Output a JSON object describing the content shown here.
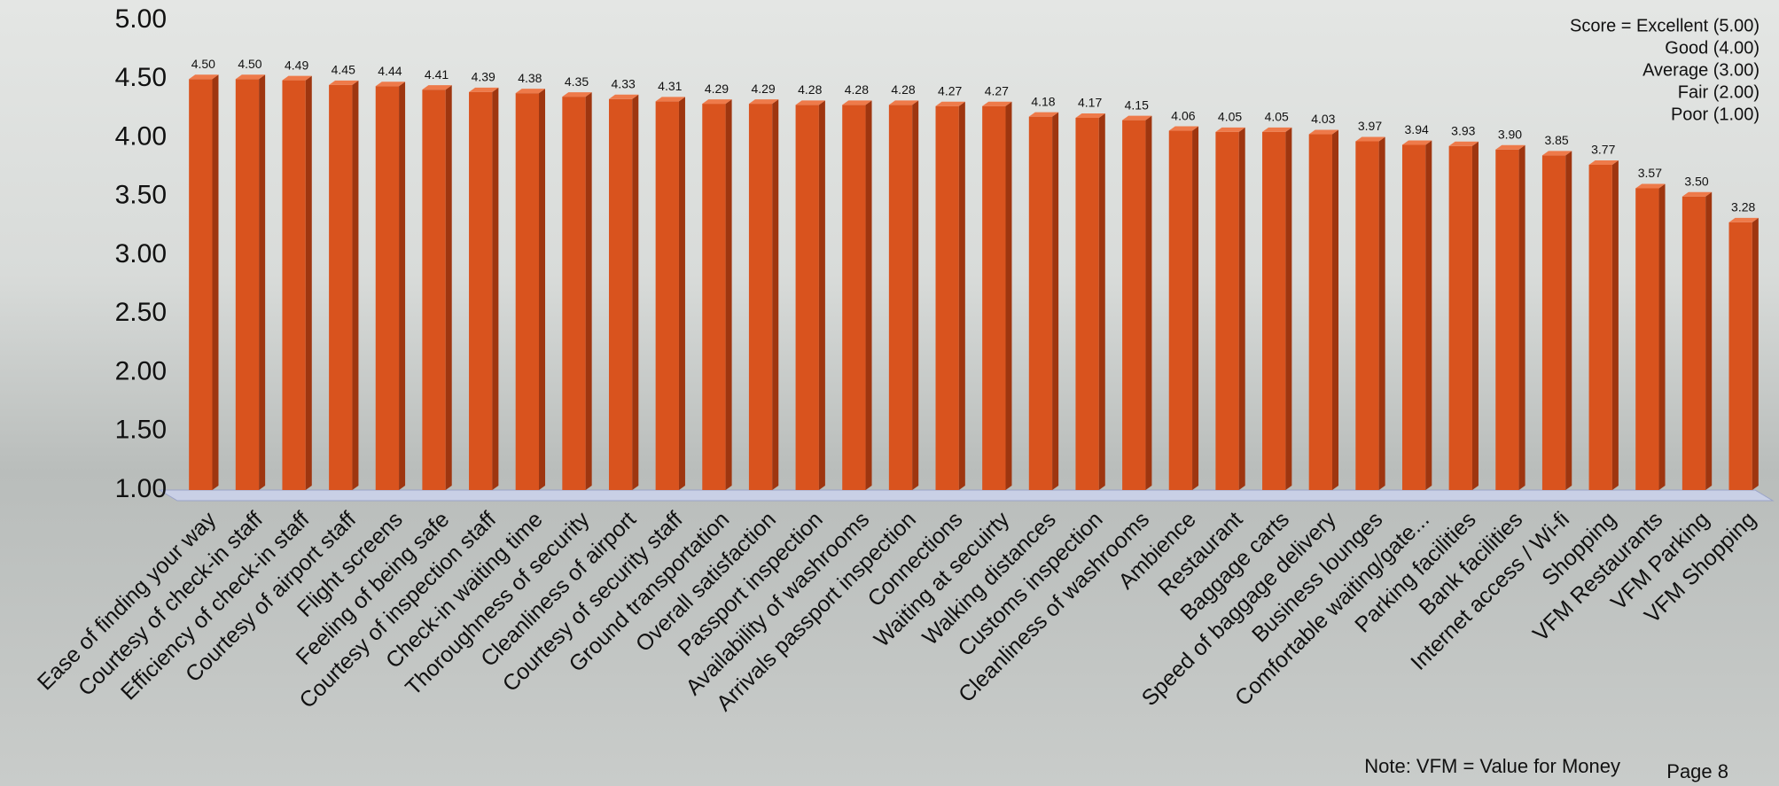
{
  "chart_data": {
    "type": "bar",
    "categories": [
      "Ease of finding your way",
      "Courtesy of check-in staff",
      "Efficiency of check-in staff",
      "Courtesy of airport staff",
      "Flight screens",
      "Feeling of being safe",
      "Courtesy of inspection staff",
      "Check-in waiting time",
      "Thoroughness of security",
      "Cleanliness of airport",
      "Courtesy of security staff",
      "Ground transportation",
      "Overall satisfaction",
      "Passport inspection",
      "Availability of washrooms",
      "Arrivals passport inspection",
      "Connections",
      "Waiting at secuirty",
      "Walking distances",
      "Customs inspection",
      "Cleanliness of washrooms",
      "Ambience",
      "Restaurant",
      "Baggage carts",
      "Speed of baggage delivery",
      "Business lounges",
      "Comfortable waiting/gate...",
      "Parking facilities",
      "Bank facilities",
      "Internet access / Wi-fi",
      "Shopping",
      "VFM Restaurants",
      "VFM Parking",
      "VFM Shopping"
    ],
    "values": [
      4.5,
      4.5,
      4.49,
      4.45,
      4.44,
      4.41,
      4.39,
      4.38,
      4.35,
      4.33,
      4.31,
      4.29,
      4.29,
      4.28,
      4.28,
      4.28,
      4.27,
      4.27,
      4.18,
      4.17,
      4.15,
      4.06,
      4.05,
      4.05,
      4.03,
      3.97,
      3.94,
      3.93,
      3.9,
      3.85,
      3.77,
      3.57,
      3.5,
      3.28
    ],
    "value_labels": [
      "4.50",
      "4.50",
      "4.49",
      "4.45",
      "4.44",
      "4.41",
      "4.39",
      "4.38",
      "4.35",
      "4.33",
      "4.31",
      "4.29",
      "4.29",
      "4.28",
      "4.28",
      "4.28",
      "4.27",
      "4.27",
      "4.18",
      "4.17",
      "4.15",
      "4.06",
      "4.05",
      "4.05",
      "4.03",
      "3.97",
      "3.94",
      "3.93",
      "3.90",
      "3.85",
      "3.77",
      "3.57",
      "3.50",
      "3.28"
    ],
    "color": "#d9531e",
    "ylim": [
      1,
      5
    ],
    "yticks": [
      {
        "value": 1,
        "label": "1.00"
      },
      {
        "value": 1.5,
        "label": "1.50"
      },
      {
        "value": 2,
        "label": "2.00"
      },
      {
        "value": 2.5,
        "label": "2.50"
      },
      {
        "value": 3,
        "label": "3.00"
      },
      {
        "value": 3.5,
        "label": "3.50"
      },
      {
        "value": 4,
        "label": "4.00"
      },
      {
        "value": 4.5,
        "label": "4.50"
      },
      {
        "value": 5,
        "label": "5.00"
      }
    ],
    "grid": false,
    "legend_lines": [
      "Score = Excellent (5.00)",
      "Good (4.00)",
      "Average (3.00)",
      "Fair (2.00)",
      "Poor (1.00)"
    ],
    "note": "Note: VFM = Value for Money",
    "page": "Page 8"
  }
}
